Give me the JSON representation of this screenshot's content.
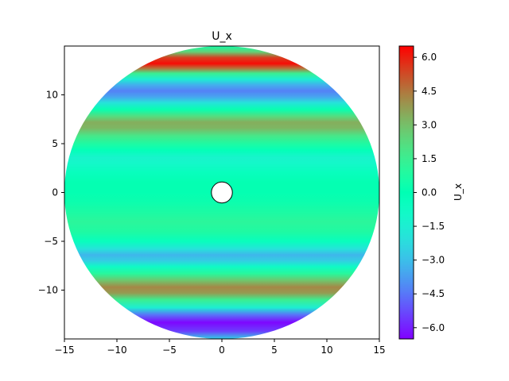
{
  "chart_data": {
    "type": "heatmap",
    "title": "U_x",
    "xlabel": "",
    "ylabel": "",
    "xlim": [
      -15,
      15
    ],
    "ylim": [
      -15,
      15
    ],
    "x_ticks": [
      -15,
      -10,
      -5,
      0,
      5,
      10,
      15
    ],
    "y_ticks": [
      -10,
      -5,
      0,
      5,
      10
    ],
    "x_tick_labels": [
      "−15",
      "−10",
      "−5",
      "0",
      "5",
      "10",
      "15"
    ],
    "y_tick_labels": [
      "−10",
      "−5",
      "0",
      "5",
      "10"
    ],
    "grid": false,
    "domain": {
      "shape": "disk",
      "center": [
        0,
        0
      ],
      "radius": 15
    },
    "obstacle": {
      "shape": "circle",
      "center": [
        0,
        0
      ],
      "radius": 1
    },
    "field_profile_y": [
      [
        -15,
        -2.5
      ],
      [
        -14.2,
        -5.5
      ],
      [
        -13.3,
        -6.4
      ],
      [
        -12.5,
        -4.5
      ],
      [
        -11.8,
        -1.5
      ],
      [
        -11.0,
        1.5
      ],
      [
        -10.3,
        3.8
      ],
      [
        -9.7,
        4.2
      ],
      [
        -9.0,
        2.8
      ],
      [
        -8.3,
        1.0
      ],
      [
        -7.6,
        -0.8
      ],
      [
        -7.0,
        -2.6
      ],
      [
        -6.4,
        -3.2
      ],
      [
        -5.8,
        -2.0
      ],
      [
        -5.0,
        -0.4
      ],
      [
        -4.0,
        0.8
      ],
      [
        -3.0,
        1.1
      ],
      [
        -2.0,
        0.7
      ],
      [
        -1.0,
        0.3
      ],
      [
        0.0,
        0.1
      ],
      [
        1.0,
        0.1
      ],
      [
        2.0,
        -0.4
      ],
      [
        3.0,
        -1.0
      ],
      [
        3.6,
        -1.2
      ],
      [
        4.3,
        -0.2
      ],
      [
        5.0,
        0.8
      ],
      [
        5.8,
        1.8
      ],
      [
        6.6,
        3.2
      ],
      [
        7.2,
        3.4
      ],
      [
        7.8,
        2.2
      ],
      [
        8.5,
        0.2
      ],
      [
        9.2,
        -2.0
      ],
      [
        9.8,
        -3.6
      ],
      [
        10.4,
        -4.3
      ],
      [
        11.0,
        -3.4
      ],
      [
        11.6,
        -1.5
      ],
      [
        12.2,
        1.5
      ],
      [
        12.7,
        4.5
      ],
      [
        13.2,
        6.3
      ],
      [
        13.8,
        5.5
      ],
      [
        14.4,
        2.5
      ],
      [
        15,
        0.5
      ]
    ],
    "colorbar": {
      "label": "U_x",
      "min": -6.5,
      "max": 6.5,
      "ticks": [
        -6.0,
        -4.5,
        -3.0,
        -1.5,
        0.0,
        1.5,
        3.0,
        4.5,
        6.0
      ],
      "tick_labels": [
        "−6.0",
        "−4.5",
        "−3.0",
        "−1.5",
        "0.0",
        "1.5",
        "3.0",
        "4.5",
        "6.0"
      ],
      "colormap": "rainbow"
    }
  }
}
